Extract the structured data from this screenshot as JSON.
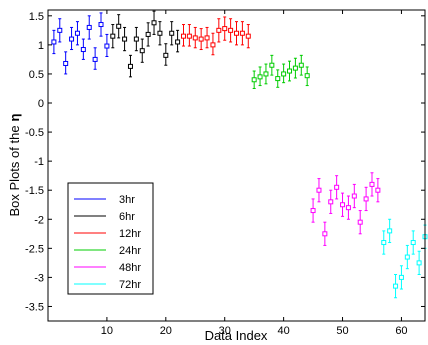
{
  "chart_data": {
    "type": "scatter",
    "xlabel": "Data Index",
    "ylabel": "Box Plots of the",
    "ylabel_symbol": "η",
    "xlim": [
      0,
      64
    ],
    "ylim": [
      -3.75,
      1.6
    ],
    "xticks": [
      10,
      20,
      30,
      40,
      50,
      60
    ],
    "yticks": [
      1.5,
      1,
      0.5,
      0,
      -0.5,
      -1,
      -1.5,
      -2,
      -2.5,
      -3,
      -3.5
    ],
    "ytick_labels": [
      "1.5",
      "1",
      "0.5",
      "0",
      "-0.5",
      "-1",
      "-1.5",
      "-2",
      "-2.5",
      "-3",
      "-3.5"
    ],
    "grid": false,
    "legend_position": "lower-left",
    "series": [
      {
        "name": "3hr",
        "color": "#0000ff",
        "points": [
          [
            1,
            1.05,
            0.85,
            1.25
          ],
          [
            2,
            1.25,
            1.05,
            1.45
          ],
          [
            3,
            0.68,
            0.5,
            0.88
          ],
          [
            4,
            1.1,
            0.92,
            1.3
          ],
          [
            5,
            1.2,
            1.0,
            1.4
          ],
          [
            6,
            0.92,
            0.75,
            1.1
          ],
          [
            7,
            1.3,
            1.1,
            1.5
          ],
          [
            8,
            0.75,
            0.58,
            0.95
          ],
          [
            9,
            1.35,
            1.15,
            1.55
          ],
          [
            10,
            0.98,
            0.8,
            1.18
          ]
        ]
      },
      {
        "name": "6hr",
        "color": "#000000",
        "points": [
          [
            11,
            1.15,
            0.95,
            1.35
          ],
          [
            12,
            1.32,
            1.12,
            1.52
          ],
          [
            13,
            1.1,
            0.9,
            1.3
          ],
          [
            14,
            0.63,
            0.45,
            0.82
          ],
          [
            15,
            1.1,
            0.9,
            1.3
          ],
          [
            16,
            0.9,
            0.7,
            1.1
          ],
          [
            17,
            1.18,
            0.98,
            1.38
          ],
          [
            18,
            1.38,
            1.18,
            1.58
          ],
          [
            19,
            1.2,
            1.0,
            1.4
          ],
          [
            20,
            0.82,
            0.65,
            1.02
          ],
          [
            21,
            1.2,
            1.0,
            1.4
          ],
          [
            22,
            1.05,
            0.88,
            1.25
          ]
        ]
      },
      {
        "name": "12hr",
        "color": "#ff0000",
        "points": [
          [
            23,
            1.15,
            0.98,
            1.35
          ],
          [
            24,
            1.15,
            0.98,
            1.35
          ],
          [
            25,
            1.12,
            0.95,
            1.3
          ],
          [
            26,
            1.1,
            0.92,
            1.28
          ],
          [
            27,
            1.12,
            0.95,
            1.3
          ],
          [
            28,
            1.0,
            0.83,
            1.2
          ],
          [
            29,
            1.25,
            1.05,
            1.45
          ],
          [
            30,
            1.28,
            1.08,
            1.48
          ],
          [
            31,
            1.25,
            1.05,
            1.45
          ],
          [
            32,
            1.2,
            1.0,
            1.4
          ],
          [
            33,
            1.2,
            1.0,
            1.4
          ],
          [
            34,
            1.15,
            0.95,
            1.35
          ]
        ]
      },
      {
        "name": "24hr",
        "color": "#00cc00",
        "points": [
          [
            35,
            0.4,
            0.25,
            0.55
          ],
          [
            36,
            0.45,
            0.3,
            0.62
          ],
          [
            37,
            0.5,
            0.33,
            0.67
          ],
          [
            38,
            0.65,
            0.48,
            0.82
          ],
          [
            39,
            0.42,
            0.27,
            0.57
          ],
          [
            40,
            0.5,
            0.35,
            0.67
          ],
          [
            41,
            0.55,
            0.38,
            0.72
          ],
          [
            42,
            0.6,
            0.43,
            0.77
          ],
          [
            43,
            0.65,
            0.48,
            0.82
          ],
          [
            44,
            0.47,
            0.3,
            0.62
          ]
        ]
      },
      {
        "name": "48hr",
        "color": "#ff00ff",
        "points": [
          [
            45,
            -1.85,
            -2.05,
            -1.65
          ],
          [
            46,
            -1.5,
            -1.7,
            -1.3
          ],
          [
            47,
            -2.25,
            -2.45,
            -2.05
          ],
          [
            48,
            -1.7,
            -1.9,
            -1.5
          ],
          [
            49,
            -1.45,
            -1.65,
            -1.25
          ],
          [
            50,
            -1.75,
            -1.95,
            -1.55
          ],
          [
            51,
            -1.8,
            -2.0,
            -1.6
          ],
          [
            52,
            -1.6,
            -1.8,
            -1.4
          ],
          [
            53,
            -2.05,
            -2.25,
            -1.85
          ],
          [
            54,
            -1.65,
            -1.85,
            -1.45
          ],
          [
            55,
            -1.4,
            -1.6,
            -1.2
          ],
          [
            56,
            -1.5,
            -1.7,
            -1.3
          ]
        ]
      },
      {
        "name": "72hr",
        "color": "#00ffff",
        "points": [
          [
            57,
            -2.4,
            -2.6,
            -2.2
          ],
          [
            58,
            -2.2,
            -2.4,
            -2.0
          ],
          [
            59,
            -3.15,
            -3.35,
            -2.95
          ],
          [
            60,
            -3.0,
            -3.2,
            -2.8
          ],
          [
            61,
            -2.65,
            -2.85,
            -2.45
          ],
          [
            62,
            -2.4,
            -2.6,
            -2.2
          ],
          [
            63,
            -2.75,
            -2.95,
            -2.55
          ],
          [
            64,
            -2.3,
            -2.5,
            -2.1
          ]
        ]
      }
    ]
  }
}
